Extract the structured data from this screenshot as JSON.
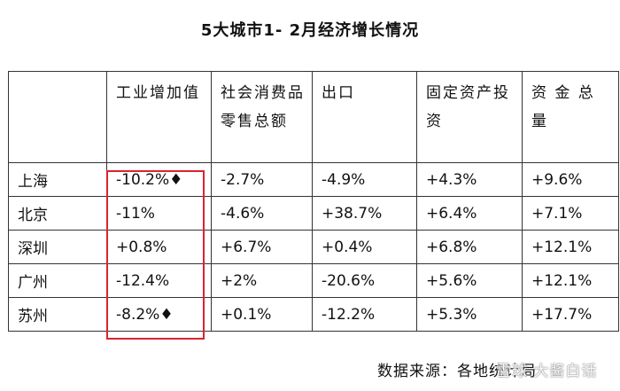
{
  "title": "5大城市1- 2月经济增长情况",
  "headers": [
    "",
    "工业增加值",
    "社会消费品零售总额",
    "出口",
    "固定资产投资",
    "资 金 总 量"
  ],
  "rows": [
    [
      "上海",
      "-10.2%♦",
      "-2.7%",
      "-4.9%",
      "+4.3%",
      "+9.6%"
    ],
    [
      "北京",
      "-11%",
      "-4.6%",
      "+38.7%",
      "+6.4%",
      "+7.1%"
    ],
    [
      "深圳",
      "+0.8%",
      "+6.7%",
      "+0.4%",
      "+6.8%",
      "+12.1%"
    ],
    [
      "广州",
      "-12.4%",
      "+2%",
      "-20.6%",
      "+5.6%",
      "+12.1%"
    ],
    [
      "苏州",
      "-8.2%♦",
      "+0.1%",
      "-12.2%",
      "+5.3%",
      "+17.7%"
    ]
  ],
  "source": "数据来源：各地统计局",
  "watermark": "雪球 大酱白话",
  "highlight_color": "#d9252e"
}
